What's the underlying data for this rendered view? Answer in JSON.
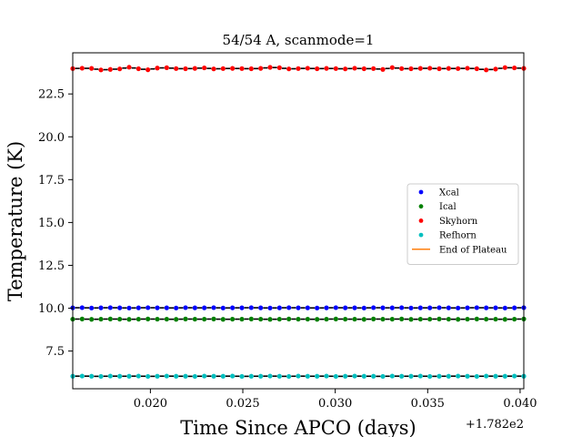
{
  "chart_data": {
    "type": "scatter",
    "title": "54/54 A, scanmode=1",
    "xlabel": "Time Since APCO (days)",
    "ylabel": "Temperature (K)",
    "x_offset_label": "+1.782e2",
    "xlim": [
      0.0158,
      0.0402
    ],
    "ylim": [
      5.3,
      24.9
    ],
    "xticks": [
      0.02,
      0.025,
      0.03,
      0.035,
      0.04
    ],
    "xtick_labels": [
      "0.020",
      "0.025",
      "0.030",
      "0.035",
      "0.040"
    ],
    "yticks": [
      7.5,
      10.0,
      12.5,
      15.0,
      17.5,
      20.0,
      22.5
    ],
    "ytick_labels": [
      "7.5",
      "10.0",
      "12.5",
      "15.0",
      "17.5",
      "20.0",
      "22.5"
    ],
    "grid": false,
    "legend_position": "center-right",
    "x_range": [
      0.0158,
      0.0402
    ],
    "n_points": 49,
    "series": [
      {
        "name": "Xcal",
        "color": "#0000ff",
        "marker": "circle",
        "values": [
          10.02,
          10.03,
          10.01,
          10.02,
          10.03,
          10.02,
          10.01,
          10.02,
          10.03,
          10.02,
          10.02,
          10.01,
          10.03,
          10.02,
          10.02,
          10.03,
          10.01,
          10.02,
          10.02,
          10.03,
          10.02,
          10.01,
          10.02,
          10.03,
          10.02,
          10.02,
          10.01,
          10.02,
          10.03,
          10.02,
          10.02,
          10.01,
          10.03,
          10.02,
          10.02,
          10.03,
          10.01,
          10.02,
          10.02,
          10.03,
          10.02,
          10.01,
          10.02,
          10.03,
          10.02,
          10.02,
          10.01,
          10.02,
          10.03
        ]
      },
      {
        "name": "Ical",
        "color": "#008000",
        "marker": "circle",
        "values": [
          9.36,
          9.37,
          9.35,
          9.36,
          9.37,
          9.36,
          9.35,
          9.36,
          9.37,
          9.36,
          9.36,
          9.35,
          9.37,
          9.36,
          9.36,
          9.37,
          9.35,
          9.36,
          9.36,
          9.37,
          9.36,
          9.35,
          9.36,
          9.37,
          9.36,
          9.36,
          9.35,
          9.36,
          9.37,
          9.36,
          9.36,
          9.35,
          9.37,
          9.36,
          9.36,
          9.37,
          9.35,
          9.36,
          9.36,
          9.37,
          9.36,
          9.35,
          9.36,
          9.37,
          9.36,
          9.36,
          9.35,
          9.36,
          9.37
        ]
      },
      {
        "name": "Skyhorn",
        "color": "#ff0000",
        "marker": "circle",
        "values": [
          23.98,
          24.0,
          23.99,
          23.9,
          23.93,
          23.96,
          24.06,
          23.97,
          23.91,
          24.01,
          24.03,
          23.98,
          23.97,
          23.99,
          24.02,
          23.96,
          23.98,
          23.99,
          23.98,
          23.97,
          23.99,
          24.05,
          24.03,
          23.96,
          23.98,
          24.0,
          23.97,
          23.99,
          23.98,
          23.96,
          24.0,
          23.97,
          23.98,
          23.93,
          24.04,
          23.98,
          23.97,
          23.99,
          24.0,
          23.97,
          23.99,
          23.98,
          24.0,
          23.97,
          23.9,
          23.95,
          24.04,
          24.02,
          23.99
        ]
      },
      {
        "name": "Refhorn",
        "color": "#00bfbf",
        "marker": "circle",
        "values": [
          6.03,
          6.04,
          6.03,
          6.02,
          6.04,
          6.03,
          6.03,
          6.04,
          6.02,
          6.03,
          6.04,
          6.03,
          6.03,
          6.02,
          6.04,
          6.03,
          6.03,
          6.04,
          6.02,
          6.03,
          6.03,
          6.04,
          6.03,
          6.02,
          6.04,
          6.03,
          6.03,
          6.04,
          6.02,
          6.03,
          6.04,
          6.03,
          6.03,
          6.02,
          6.04,
          6.03,
          6.03,
          6.04,
          6.02,
          6.03,
          6.03,
          6.04,
          6.03,
          6.02,
          6.04,
          6.03,
          6.03,
          6.04,
          6.03
        ]
      },
      {
        "name": "End of Plateau",
        "color": "#ff7f0e",
        "marker": "line",
        "values": []
      }
    ]
  }
}
